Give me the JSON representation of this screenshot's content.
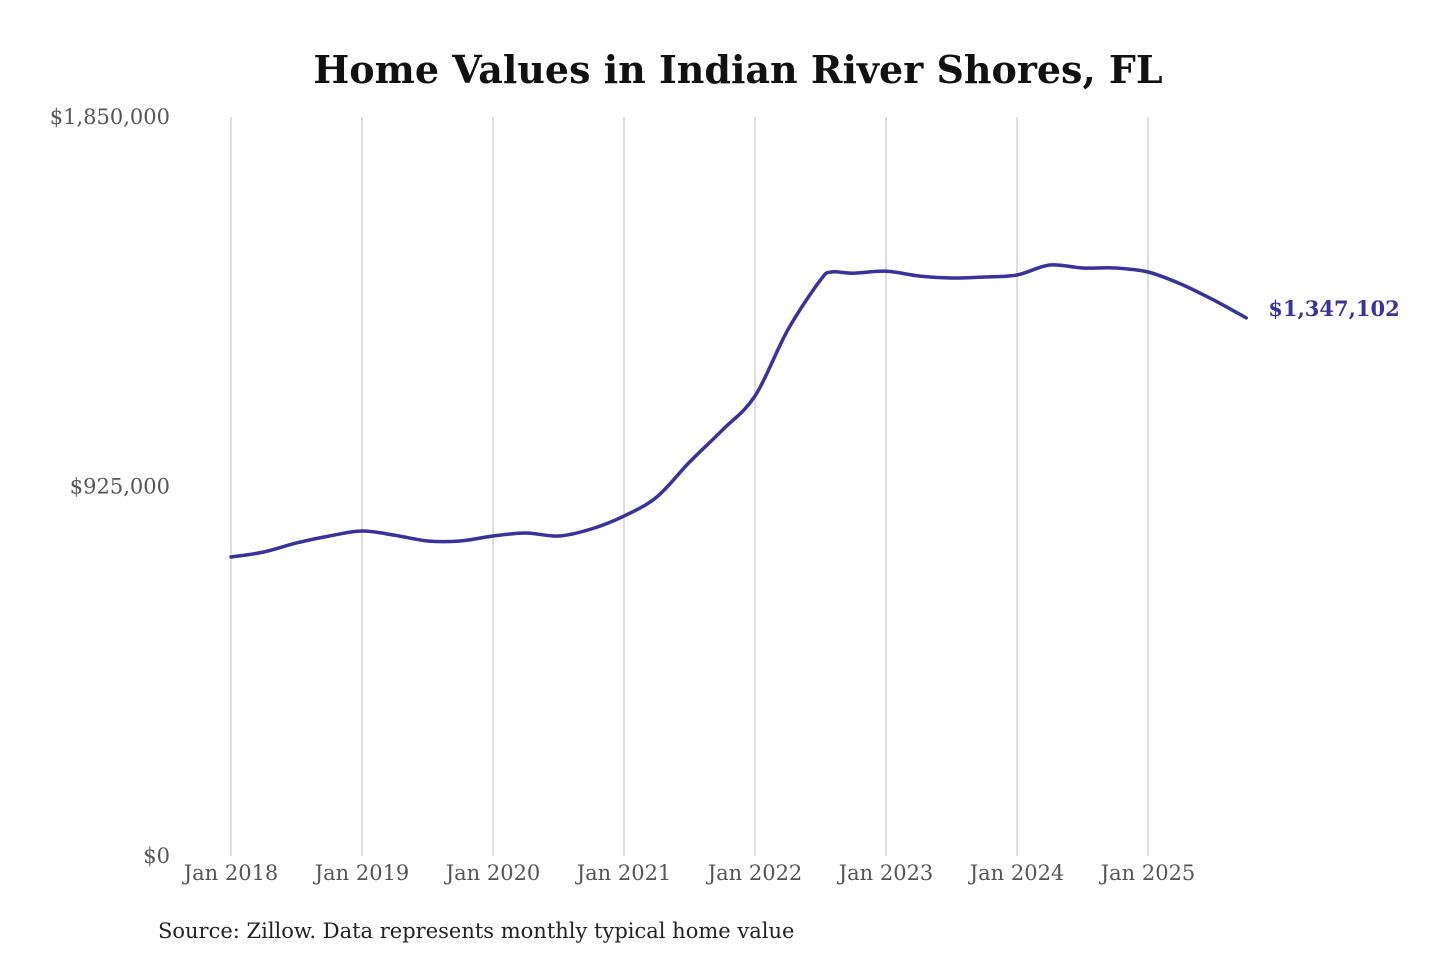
{
  "chart_data": {
    "type": "line",
    "title": "Home Values in Indian River Shores, FL",
    "xlabel": "",
    "ylabel": "",
    "source": "Source: Zillow. Data represents monthly typical home value",
    "ylim": [
      0,
      1850000
    ],
    "yticks": [
      {
        "value": 0,
        "label": "$0"
      },
      {
        "value": 925000,
        "label": "$925,000"
      },
      {
        "value": 1850000,
        "label": "$1,850,000"
      }
    ],
    "xticks": [
      {
        "date": "2018-01",
        "label": "Jan 2018"
      },
      {
        "date": "2019-01",
        "label": "Jan 2019"
      },
      {
        "date": "2020-01",
        "label": "Jan 2020"
      },
      {
        "date": "2021-01",
        "label": "Jan 2021"
      },
      {
        "date": "2022-01",
        "label": "Jan 2022"
      },
      {
        "date": "2023-01",
        "label": "Jan 2023"
      },
      {
        "date": "2024-01",
        "label": "Jan 2024"
      },
      {
        "date": "2025-01",
        "label": "Jan 2025"
      }
    ],
    "grid": "vertical",
    "line_color": "#37339a",
    "end_label": "$1,347,102",
    "series": [
      {
        "x": [
          "2018-01",
          "2018-04",
          "2018-07",
          "2018-10",
          "2019-01",
          "2019-04",
          "2019-07",
          "2019-10",
          "2020-01",
          "2020-04",
          "2020-07",
          "2020-10",
          "2021-01",
          "2021-04",
          "2021-07",
          "2021-10",
          "2022-01",
          "2022-04",
          "2022-07",
          "2022-08",
          "2022-10",
          "2023-01",
          "2023-04",
          "2023-07",
          "2023-10",
          "2024-01",
          "2024-04",
          "2024-07",
          "2024-10",
          "2025-01",
          "2025-04",
          "2025-07",
          "2025-10"
        ],
        "values": [
          748500,
          761000,
          783600,
          801000,
          813600,
          803000,
          788600,
          788600,
          801000,
          808600,
          801000,
          818600,
          851000,
          898700,
          986000,
          1066000,
          1151600,
          1316800,
          1442000,
          1462000,
          1459000,
          1464000,
          1452000,
          1447000,
          1449500,
          1454500,
          1479500,
          1472000,
          1472000,
          1462000,
          1432000,
          1392000,
          1347102
        ]
      }
    ]
  }
}
